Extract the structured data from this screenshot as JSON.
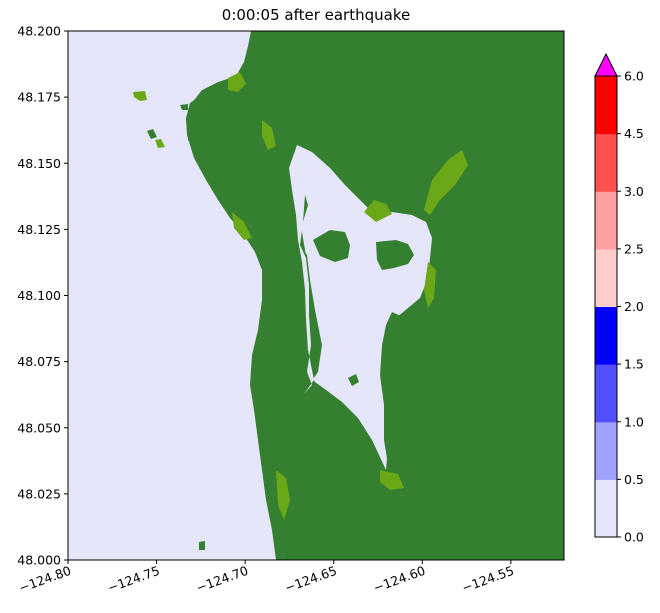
{
  "title": "0:00:05 after earthquake",
  "map": {
    "x_ticks": [
      "−124.80",
      "−124.75",
      "−124.70",
      "−124.65",
      "−124.60",
      "−124.55"
    ],
    "y_ticks": [
      "48.200",
      "48.175",
      "48.150",
      "48.125",
      "48.100",
      "48.075",
      "48.050",
      "48.025",
      "48.000"
    ],
    "x_range": [
      -124.8,
      -124.52
    ],
    "y_range": [
      48.0,
      48.2
    ],
    "colors": {
      "water": "#e6e6fa",
      "land": "#357f30",
      "land_highlight": "#6aa818",
      "frame": "#000000"
    }
  },
  "colorbar": {
    "ticks": [
      "0.0",
      "0.5",
      "1.0",
      "1.5",
      "2.0",
      "2.5",
      "3.0",
      "4.5",
      "6.0"
    ],
    "band_colors": [
      "#e6e6fa",
      "#a0a0ff",
      "#5050ff",
      "#0000ff",
      "#ffcccc",
      "#ff9f9f",
      "#ff5050",
      "#ff0000"
    ],
    "extend_color": "#ff00ff"
  }
}
